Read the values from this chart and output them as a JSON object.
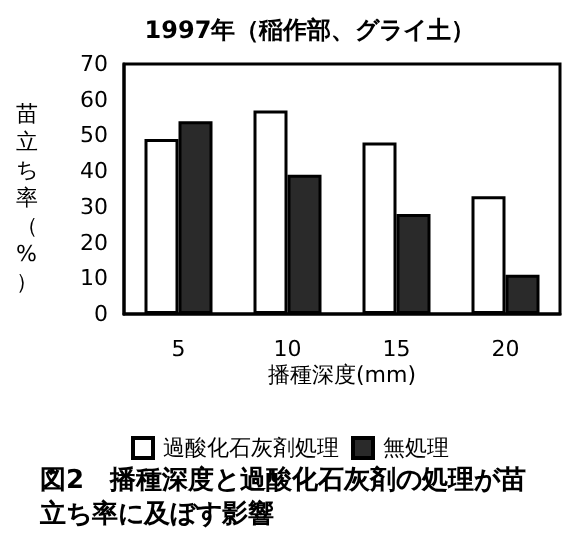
{
  "chart_data": {
    "type": "bar",
    "title": "1997年（稲作部、グライ土）",
    "xlabel": "播種深度(mm)",
    "ylabel": "苗立ち率（%）",
    "categories": [
      "5",
      "10",
      "15",
      "20"
    ],
    "series": [
      {
        "name": "過酸化石灰剤処理",
        "color": "#ffffff",
        "values": [
          49,
          57,
          48,
          33
        ]
      },
      {
        "name": "無処理",
        "color": "#2a2a2a",
        "values": [
          54,
          39,
          28,
          11
        ]
      }
    ],
    "ylim": [
      0,
      70
    ],
    "yticks": [
      0,
      10,
      20,
      30,
      40,
      50,
      60,
      70
    ],
    "grid": false,
    "legend": "bottom",
    "annotations": [
      "図2　播種深度と過酸化石灰剤の処理が苗立ち率に及ぼす影響"
    ]
  }
}
